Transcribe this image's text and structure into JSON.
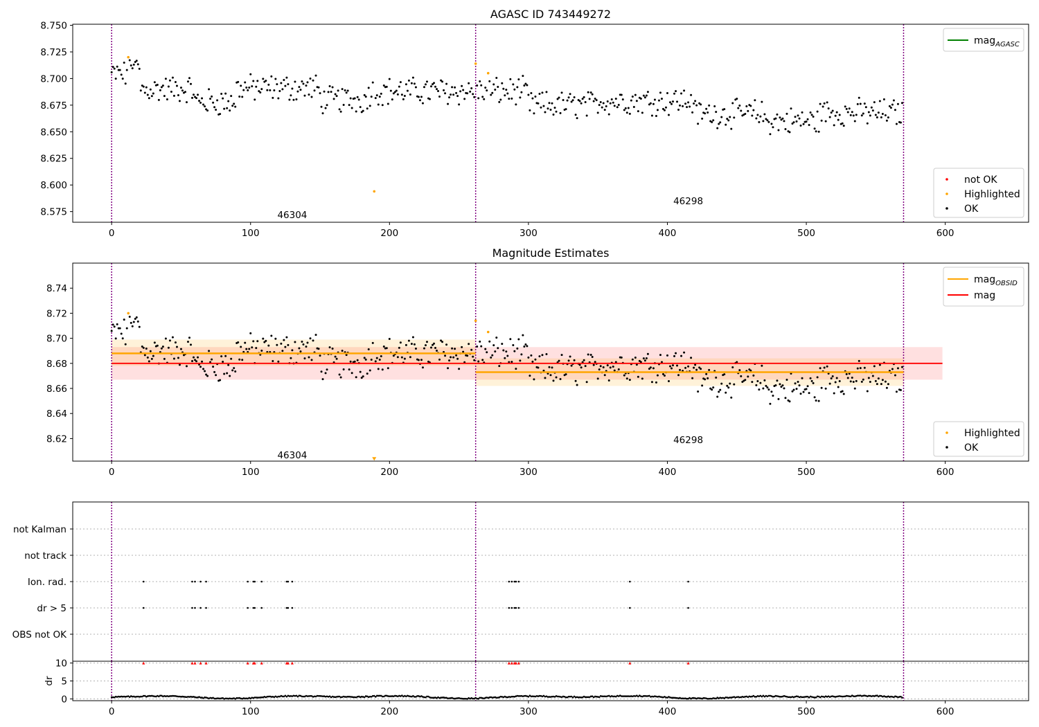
{
  "chart_data": [
    {
      "type": "scatter",
      "title": "AGASC ID 743449272",
      "xlim": [
        -28,
        660
      ],
      "ylim": [
        8.565,
        8.751
      ],
      "xticks": [
        0,
        100,
        200,
        300,
        400,
        500,
        600
      ],
      "yticks": [
        8.575,
        8.6,
        8.625,
        8.65,
        8.675,
        8.7,
        8.725,
        8.75
      ],
      "ytick_labels": [
        "8.575",
        "8.600",
        "8.625",
        "8.650",
        "8.675",
        "8.700",
        "8.725",
        "8.750"
      ],
      "legend_lines": [
        {
          "label": "mag",
          "sub": "AGASC",
          "color": "#008000"
        }
      ],
      "legend_points": [
        {
          "label": "not OK",
          "color": "#ff0000"
        },
        {
          "label": "Highlighted",
          "color": "#ffa500"
        },
        {
          "label": "OK",
          "color": "#000000"
        }
      ],
      "obsid_boundaries": [
        0,
        262,
        570
      ],
      "obsid_labels": [
        {
          "text": "46304",
          "x": 130,
          "y": 8.572
        },
        {
          "text": "46298",
          "x": 415,
          "y": 8.585
        }
      ],
      "highlighted_points": [
        {
          "x": 12,
          "y": 8.72
        },
        {
          "x": 262,
          "y": 8.714
        },
        {
          "x": 271,
          "y": 8.705
        },
        {
          "x": 189,
          "y": 8.594
        }
      ]
    },
    {
      "type": "scatter",
      "title": "Magnitude Estimates",
      "xlim": [
        -28,
        660
      ],
      "ylim": [
        8.602,
        8.76
      ],
      "xticks": [
        0,
        100,
        200,
        300,
        400,
        500,
        600
      ],
      "yticks": [
        8.62,
        8.64,
        8.66,
        8.68,
        8.7,
        8.72,
        8.74
      ],
      "ytick_labels": [
        "8.62",
        "8.64",
        "8.66",
        "8.68",
        "8.70",
        "8.72",
        "8.74"
      ],
      "legend_lines": [
        {
          "label": "mag",
          "sub": "OBSID",
          "color": "#ffa500"
        },
        {
          "label": "mag",
          "sub": "",
          "color": "#ff0000"
        }
      ],
      "legend_points": [
        {
          "label": "Highlighted",
          "color": "#ffa500"
        },
        {
          "label": "OK",
          "color": "#000000"
        }
      ],
      "mag": {
        "value": 8.68,
        "band": [
          8.667,
          8.693
        ],
        "x_range": [
          0,
          598
        ]
      },
      "mag_obsid": [
        {
          "x_range": [
            0,
            262
          ],
          "value": 8.688,
          "band": [
            8.678,
            8.699
          ]
        },
        {
          "x_range": [
            262,
            570
          ],
          "value": 8.673,
          "band": [
            8.662,
            8.684
          ]
        }
      ],
      "obsid_boundaries": [
        0,
        262,
        570
      ],
      "obsid_labels": [
        {
          "text": "46304",
          "x": 130,
          "y": 8.607
        },
        {
          "text": "46298",
          "x": 415,
          "y": 8.619
        }
      ],
      "highlighted_points": [
        {
          "x": 12,
          "y": 8.72
        },
        {
          "x": 262,
          "y": 8.714
        },
        {
          "x": 271,
          "y": 8.705
        }
      ],
      "offscale_marker": {
        "x": 189,
        "y": 8.603
      }
    },
    {
      "type": "scatter",
      "title": "",
      "xlim": [
        -28,
        660
      ],
      "categories": [
        "OBS not OK",
        "dr > 5",
        "Ion. rad.",
        "not track",
        "not Kalman"
      ],
      "flag_x": [
        23,
        58,
        60,
        64,
        68,
        98,
        102,
        103,
        108,
        126,
        127,
        130,
        286,
        288,
        290,
        291,
        293,
        373,
        415
      ],
      "flag_rows": [
        "dr > 5",
        "Ion. rad."
      ],
      "obsid_boundaries": [
        0,
        262,
        570
      ]
    },
    {
      "type": "scatter",
      "title": "",
      "ylabel": "dr",
      "xlim": [
        -28,
        660
      ],
      "ylim": [
        -0.5,
        10.5
      ],
      "xticks": [
        0,
        100,
        200,
        300,
        400,
        500,
        600
      ],
      "yticks": [
        0,
        5,
        10
      ],
      "ytick_labels": [
        "0",
        "5",
        "10"
      ],
      "clipped_dr_x": [
        23,
        58,
        60,
        64,
        68,
        98,
        102,
        103,
        108,
        126,
        127,
        130,
        286,
        288,
        290,
        291,
        293,
        373,
        415
      ],
      "clipped_dr_value": 10,
      "obsid_boundaries": [
        0,
        262,
        570
      ]
    }
  ]
}
